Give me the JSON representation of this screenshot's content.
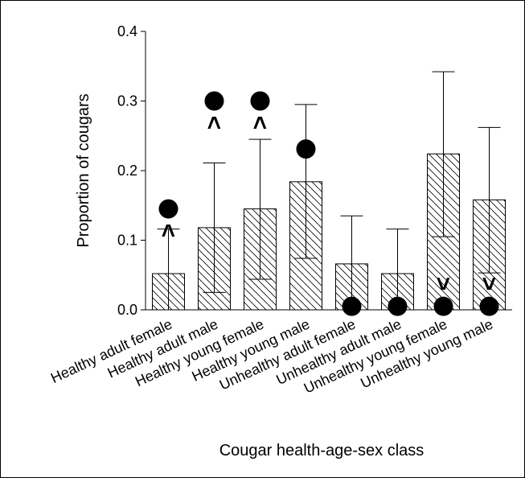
{
  "chart_data": {
    "type": "bar",
    "xlabel": "Cougar health-age-sex class",
    "ylabel": "Proportion of cougars",
    "categories": [
      "Healthy adult female",
      "Healthy adult male",
      "Healthy young female",
      "Healthy young male",
      "Unhealthy adult female",
      "Unhealthy adult male",
      "Unhealthy young female",
      "Unhealthy young male"
    ],
    "values": [
      0.052,
      0.118,
      0.145,
      0.184,
      0.066,
      0.052,
      0.224,
      0.158
    ],
    "ci_lower": [
      0,
      0.025,
      0.044,
      0.074,
      0,
      0,
      0.105,
      0.053
    ],
    "ci_upper": [
      0.116,
      0.211,
      0.245,
      0.295,
      0.135,
      0.116,
      0.342,
      0.262
    ],
    "observed": [
      0.145,
      0.3,
      0.3,
      0.231,
      0.005,
      0.005,
      0.005,
      0.005
    ],
    "symbols": [
      "<",
      "<",
      "<",
      null,
      null,
      null,
      ">",
      ">"
    ],
    "ylim": [
      0,
      0.4
    ],
    "yticks": [
      {
        "value": 0,
        "label": "0.0"
      },
      0.1,
      0.2,
      0.3,
      0.4
    ],
    "color": "#000000"
  }
}
